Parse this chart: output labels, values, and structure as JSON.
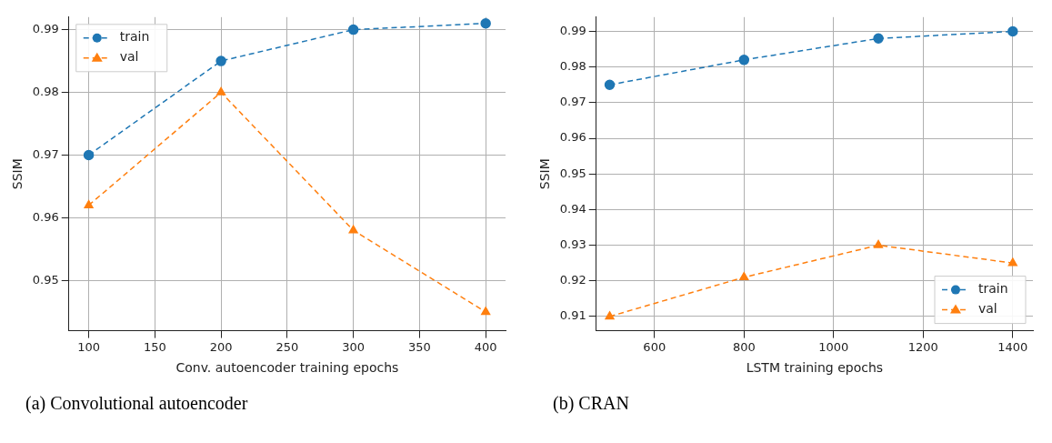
{
  "chart_data": [
    {
      "type": "line",
      "xlabel": "Conv. autoencoder training epochs",
      "ylabel": "SSIM",
      "x": [
        100,
        200,
        300,
        400
      ],
      "xlim": [
        85,
        415
      ],
      "xticks": [
        100,
        150,
        200,
        250,
        300,
        350,
        400
      ],
      "ylim": [
        0.942,
        0.992
      ],
      "yticks": [
        0.95,
        0.96,
        0.97,
        0.98,
        0.99
      ],
      "grid": true,
      "legend": "top left",
      "line_style": "dashed",
      "annotations": [
        "(a) Convolutional autoencoder"
      ],
      "series": [
        {
          "name": "train",
          "color": "#1f77b4",
          "marker": "circle",
          "values": [
            0.97,
            0.985,
            0.99,
            0.991
          ]
        },
        {
          "name": "val",
          "color": "#ff7f0e",
          "marker": "triangle",
          "values": [
            0.962,
            0.98,
            0.958,
            0.945
          ]
        }
      ]
    },
    {
      "type": "line",
      "xlabel": "LSTM training epochs",
      "ylabel": "SSIM",
      "x": [
        500,
        800,
        1100,
        1400
      ],
      "xlim": [
        470,
        1445
      ],
      "xticks": [
        600,
        800,
        1000,
        1200,
        1400
      ],
      "ylim": [
        0.906,
        0.994
      ],
      "yticks": [
        0.91,
        0.92,
        0.93,
        0.94,
        0.95,
        0.96,
        0.97,
        0.98,
        0.99
      ],
      "grid": true,
      "legend": "bottom right",
      "line_style": "dashed",
      "annotations": [
        "(b) CRAN"
      ],
      "series": [
        {
          "name": "train",
          "color": "#1f77b4",
          "marker": "circle",
          "values": [
            0.975,
            0.982,
            0.988,
            0.99
          ]
        },
        {
          "name": "val",
          "color": "#ff7f0e",
          "marker": "triangle",
          "values": [
            0.91,
            0.921,
            0.93,
            0.925
          ]
        }
      ]
    }
  ]
}
